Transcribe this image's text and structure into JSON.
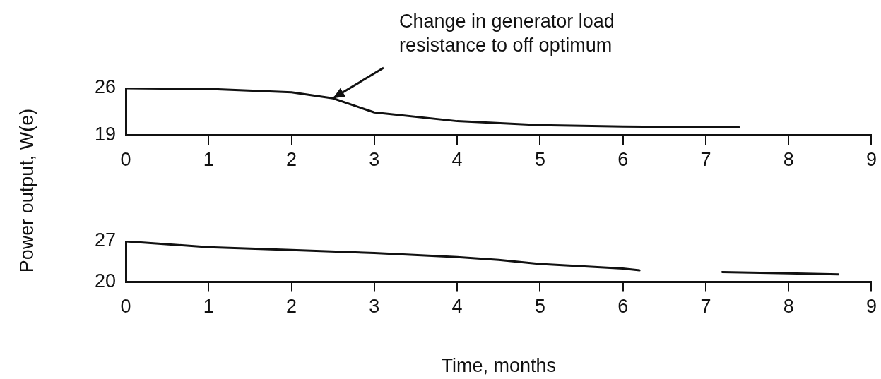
{
  "chart_data": [
    {
      "type": "line",
      "ylabel": "Power output, W(e)",
      "x": [
        0,
        1,
        2,
        2.5,
        3,
        4,
        5,
        6,
        7,
        7.4
      ],
      "series": [
        {
          "color": "#111111",
          "values": [
            26,
            25.9,
            25.4,
            24.5,
            22.4,
            21.1,
            20.5,
            20.3,
            20.2,
            20.2
          ]
        }
      ],
      "xlim": [
        0,
        9
      ],
      "xticks": [
        0,
        1,
        2,
        3,
        4,
        5,
        6,
        7,
        8,
        9
      ],
      "ylim": [
        19,
        26
      ],
      "yticks": [
        19,
        26
      ],
      "grid": false,
      "legend": false,
      "marker": "none",
      "line_style": "solid",
      "annotations": [
        {
          "text": "Change in generator load resistance to off optimum",
          "x": 2.5,
          "y": 24.5
        }
      ]
    },
    {
      "type": "line",
      "xlabel": "Time, months",
      "x": [
        0,
        1,
        2,
        3,
        4,
        4.5,
        5,
        6,
        6.2,
        6.7,
        7.2,
        8,
        8.6
      ],
      "series": [
        {
          "color": "#111111",
          "values": [
            27,
            26.0,
            25.5,
            25.0,
            24.3,
            23.8,
            23.1,
            22.3,
            22.0,
            null,
            21.7,
            21.5,
            21.3
          ]
        }
      ],
      "xlim": [
        0,
        9
      ],
      "xticks": [
        0,
        1,
        2,
        3,
        4,
        5,
        6,
        7,
        8,
        9
      ],
      "ylim": [
        20,
        27
      ],
      "yticks": [
        20,
        27
      ],
      "grid": false,
      "legend": false,
      "marker": "none",
      "line_style": "solid"
    }
  ]
}
